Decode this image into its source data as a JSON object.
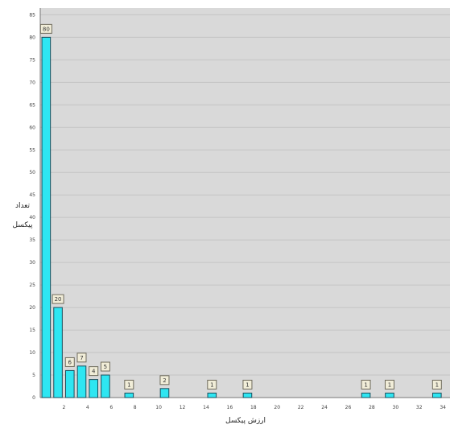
{
  "chart_data": {
    "type": "bar",
    "xlabel": "ارزش پیکسل",
    "ylabel_lines": [
      "تعداد",
      "پیکسل"
    ],
    "x_ticks": [
      2,
      4,
      6,
      8,
      10,
      12,
      14,
      16,
      18,
      20,
      22,
      24,
      26,
      28,
      30,
      32,
      34
    ],
    "y_ticks": [
      0,
      5,
      10,
      15,
      20,
      25,
      30,
      35,
      40,
      45,
      50,
      55,
      60,
      65,
      70,
      75,
      80,
      85
    ],
    "xlim": [
      0,
      34.6
    ],
    "ylim": [
      0,
      86.5
    ],
    "bars": [
      {
        "x": 0.5,
        "value": 80
      },
      {
        "x": 1.5,
        "value": 20
      },
      {
        "x": 2.5,
        "value": 6
      },
      {
        "x": 3.5,
        "value": 7
      },
      {
        "x": 4.5,
        "value": 4
      },
      {
        "x": 5.5,
        "value": 5
      },
      {
        "x": 7.5,
        "value": 1
      },
      {
        "x": 10.5,
        "value": 2
      },
      {
        "x": 14.5,
        "value": 1
      },
      {
        "x": 17.5,
        "value": 1
      },
      {
        "x": 27.5,
        "value": 1
      },
      {
        "x": 29.5,
        "value": 1
      },
      {
        "x": 33.5,
        "value": 1
      }
    ],
    "grid": true,
    "bar_color": "#2ee6f2",
    "background_color": "#d9d9d9"
  }
}
